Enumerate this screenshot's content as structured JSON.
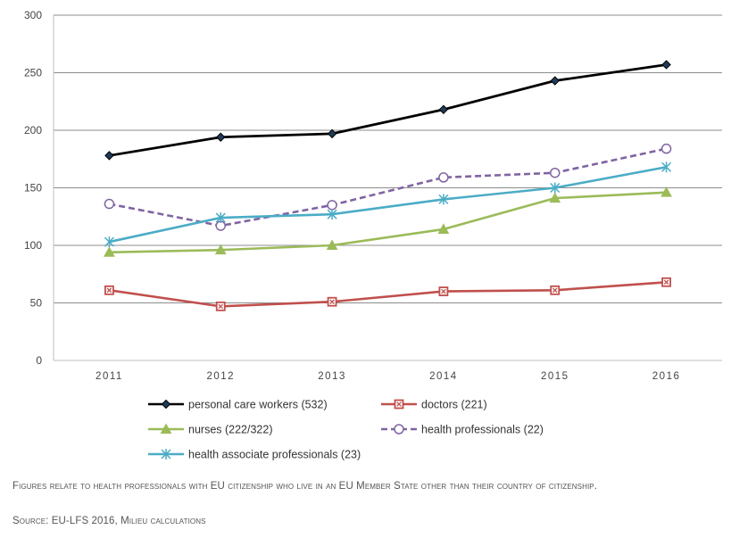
{
  "chart_data": {
    "type": "line",
    "categories": [
      "2011",
      "2012",
      "2013",
      "2014",
      "2015",
      "2016"
    ],
    "ylim": [
      0,
      300
    ],
    "yticks": [
      0,
      50,
      100,
      150,
      200,
      250,
      300
    ],
    "grid": "horizontal",
    "legend_position": "bottom",
    "series": [
      {
        "name": "personal care workers (532)",
        "color": "#000000",
        "marker": "diamond",
        "dashed": false,
        "values": [
          178,
          194,
          197,
          218,
          243,
          257
        ]
      },
      {
        "name": "doctors (221)",
        "color": "#c0504d",
        "marker": "square",
        "dashed": false,
        "values": [
          61,
          47,
          51,
          60,
          61,
          68
        ]
      },
      {
        "name": "nurses (222/322)",
        "color": "#9bbb59",
        "marker": "triangle",
        "dashed": false,
        "values": [
          94,
          96,
          100,
          114,
          141,
          146
        ]
      },
      {
        "name": "health professionals (22)",
        "color": "#8064a2",
        "marker": "circle",
        "dashed": true,
        "values": [
          136,
          117,
          135,
          159,
          163,
          184
        ]
      },
      {
        "name": "health associate professionals (23)",
        "color": "#4bacc6",
        "marker": "star",
        "dashed": false,
        "values": [
          103,
          124,
          127,
          140,
          150,
          168
        ]
      }
    ]
  },
  "notes": {
    "line1": "Figures relate to health professionals with EU citizenship who live in an EU Member State other than their country of citizenship.",
    "line2": "Source: EU-LFS 2016, Milieu calculations"
  }
}
